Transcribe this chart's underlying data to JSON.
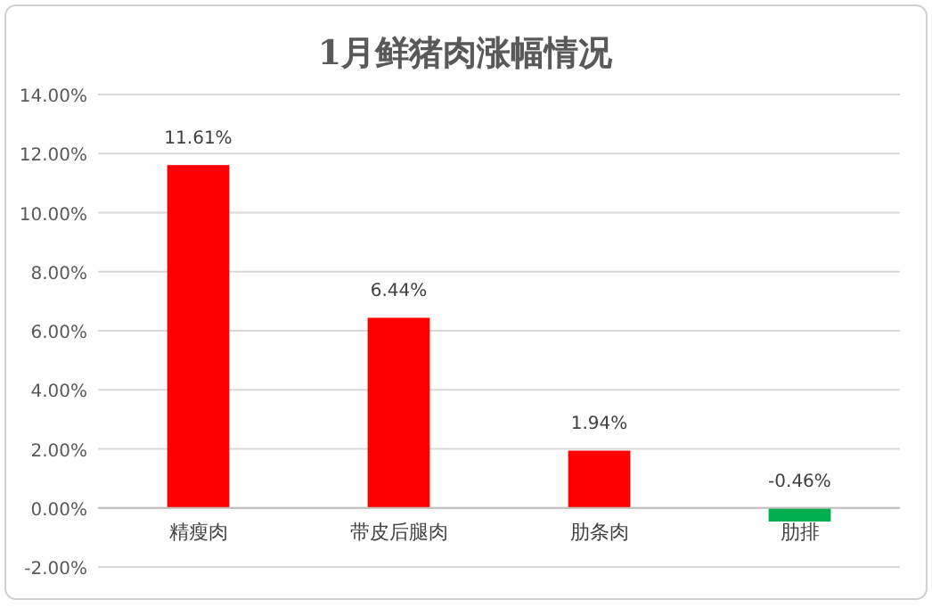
{
  "chart_data": {
    "type": "bar",
    "title": "1月鲜猪肉涨幅情况",
    "categories": [
      "精瘦肉",
      "带皮后腿肉",
      "肋条肉",
      "肋排"
    ],
    "values": [
      11.61,
      6.44,
      1.94,
      -0.46
    ],
    "colors": [
      "#ff0000",
      "#ff0000",
      "#ff0000",
      "#00b050"
    ],
    "value_labels": [
      "11.61%",
      "6.44%",
      "1.94%",
      "-0.46%"
    ],
    "ylim": [
      -2,
      14
    ],
    "yticks": [
      {
        "value": -2,
        "label": "-2.00%"
      },
      {
        "value": 0,
        "label": "0.00%"
      },
      {
        "value": 2,
        "label": "2.00%"
      },
      {
        "value": 4,
        "label": "4.00%"
      },
      {
        "value": 6,
        "label": "6.00%"
      },
      {
        "value": 8,
        "label": "8.00%"
      },
      {
        "value": 10,
        "label": "10.00%"
      },
      {
        "value": 12,
        "label": "12.00%"
      },
      {
        "value": 14,
        "label": "14.00%"
      }
    ],
    "grid": "y"
  }
}
